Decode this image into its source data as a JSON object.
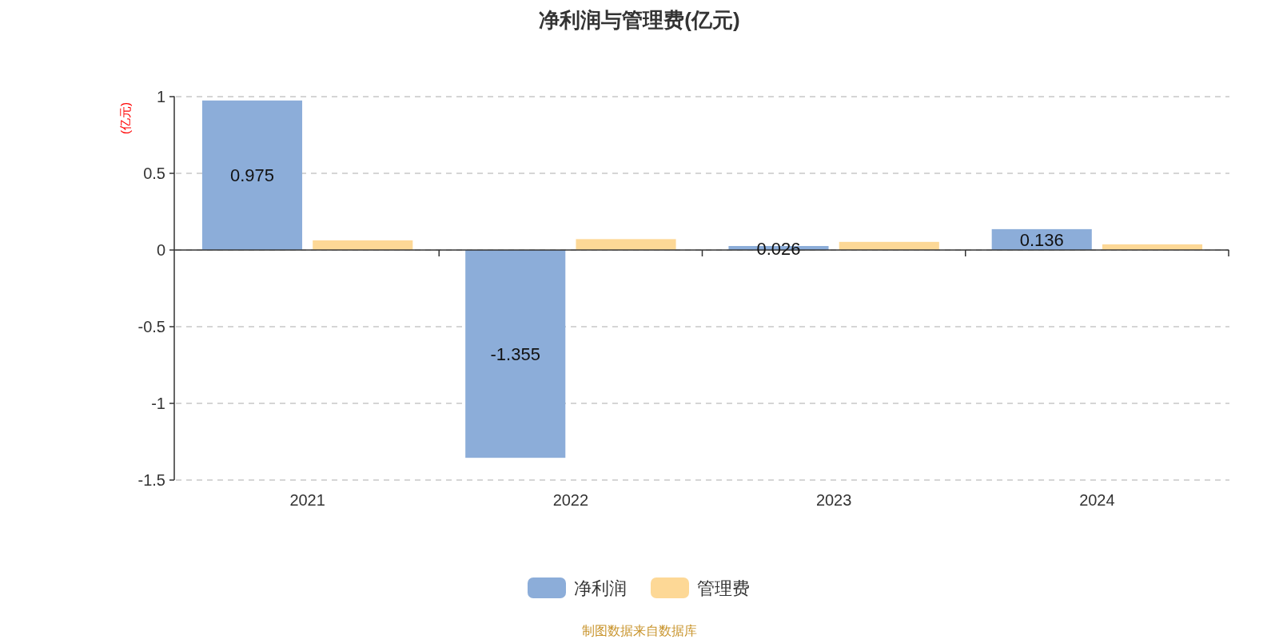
{
  "chart_data": {
    "type": "bar",
    "title": "净利润与管理费(亿元)",
    "ylabel": "(亿元)",
    "categories": [
      "2021",
      "2022",
      "2023",
      "2024"
    ],
    "series": [
      {
        "name": "净利润",
        "color": "#8cadd9",
        "values": [
          0.975,
          -1.355,
          0.026,
          0.136
        ],
        "value_labels": [
          "0.975",
          "-1.355",
          "0.026",
          "0.136"
        ]
      },
      {
        "name": "管理费",
        "color": "#fdd896",
        "values": [
          0.063,
          0.071,
          0.053,
          0.037
        ]
      }
    ],
    "ylim": [
      -1.5,
      1
    ],
    "yticks": [
      -1.5,
      -1,
      -0.5,
      0,
      0.5,
      1
    ],
    "grid": "y",
    "legend": "bottom",
    "annotations": [
      "制图数据来自数据库"
    ]
  }
}
